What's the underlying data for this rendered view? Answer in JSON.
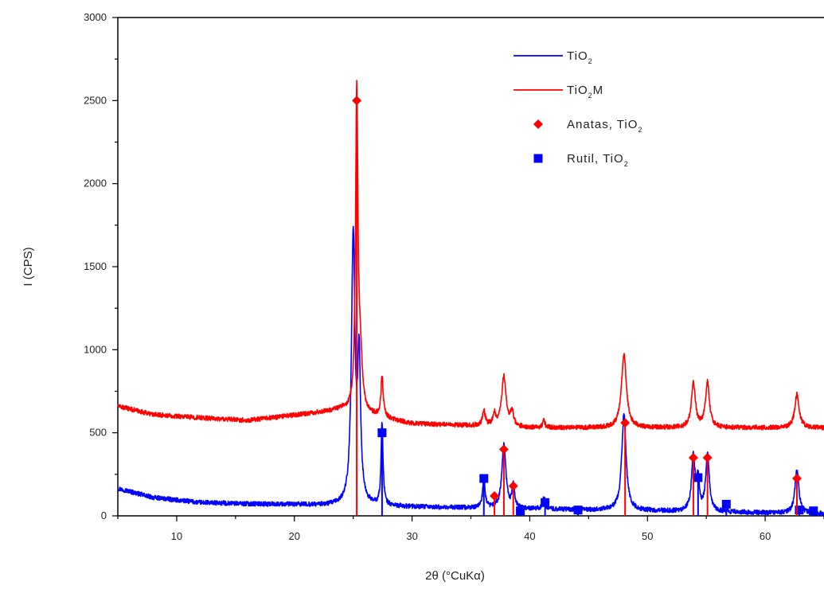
{
  "chart_data": {
    "type": "line",
    "title": "",
    "xlabel": "2θ (°CuKα)",
    "ylabel": "I (CPS)",
    "xlim": [
      5,
      65
    ],
    "ylim": [
      0,
      3000
    ],
    "x_ticks": [
      10,
      20,
      30,
      40,
      50,
      60
    ],
    "x_tick_labels": [
      "10",
      "20",
      "30",
      "40",
      "50",
      "60"
    ],
    "y_ticks": [
      0,
      500,
      1000,
      1500,
      2000,
      2500,
      3000
    ],
    "y_tick_labels": [
      "0",
      "500",
      "1000",
      "1500",
      "2000",
      "2500",
      "3000"
    ],
    "grid": false,
    "legend_position": "top-right",
    "colors": {
      "tio2": "#0000ff",
      "tio2m": "#ff0000",
      "anatas": "#ff0000",
      "rutil": "#0000ff"
    },
    "series": [
      {
        "name_parts": [
          "TiO",
          "2",
          ""
        ],
        "color": "#0000ff",
        "background": [
          [
            5,
            165
          ],
          [
            8,
            110
          ],
          [
            12,
            80
          ],
          [
            16,
            72
          ],
          [
            20,
            68
          ],
          [
            23,
            62
          ],
          [
            65,
            12
          ]
        ],
        "peaks": [
          {
            "x": 25.0,
            "y": 1600,
            "w": 0.18
          },
          {
            "x": 25.5,
            "y": 850,
            "w": 0.15
          },
          {
            "x": 27.45,
            "y": 500,
            "w": 0.1
          },
          {
            "x": 36.1,
            "y": 180,
            "w": 0.12
          },
          {
            "x": 37.8,
            "y": 390,
            "w": 0.2
          },
          {
            "x": 38.6,
            "y": 140,
            "w": 0.12
          },
          {
            "x": 41.2,
            "y": 70,
            "w": 0.12
          },
          {
            "x": 48.0,
            "y": 580,
            "w": 0.22
          },
          {
            "x": 53.9,
            "y": 330,
            "w": 0.18
          },
          {
            "x": 55.1,
            "y": 350,
            "w": 0.18
          },
          {
            "x": 54.3,
            "y": 180,
            "w": 0.12
          },
          {
            "x": 62.7,
            "y": 260,
            "w": 0.2
          }
        ],
        "noise": 14
      },
      {
        "name_parts": [
          "TiO",
          "2",
          "M"
        ],
        "color": "#ff0000",
        "background": [
          [
            5,
            660
          ],
          [
            8,
            610
          ],
          [
            12,
            590
          ],
          [
            16,
            575
          ],
          [
            20,
            605
          ],
          [
            24,
            640
          ],
          [
            30,
            555
          ],
          [
            40,
            530
          ],
          [
            50,
            530
          ],
          [
            65,
            530
          ]
        ],
        "peaks": [
          {
            "x": 25.3,
            "y": 1900,
            "w": 0.12
          },
          {
            "x": 25.6,
            "y": 300,
            "w": 0.2
          },
          {
            "x": 27.45,
            "y": 240,
            "w": 0.12
          },
          {
            "x": 36.1,
            "y": 90,
            "w": 0.15
          },
          {
            "x": 37.0,
            "y": 70,
            "w": 0.15
          },
          {
            "x": 37.8,
            "y": 300,
            "w": 0.22
          },
          {
            "x": 38.5,
            "y": 90,
            "w": 0.15
          },
          {
            "x": 41.2,
            "y": 40,
            "w": 0.12
          },
          {
            "x": 48.0,
            "y": 440,
            "w": 0.25
          },
          {
            "x": 53.9,
            "y": 270,
            "w": 0.2
          },
          {
            "x": 55.1,
            "y": 270,
            "w": 0.2
          },
          {
            "x": 62.7,
            "y": 200,
            "w": 0.22
          }
        ],
        "noise": 14
      }
    ],
    "reference_lines": {
      "anatas": {
        "name_parts": [
          "Anatas, TiO",
          "2"
        ],
        "marker": "diamond",
        "color": "#ff0000",
        "points": [
          [
            25.3,
            2500
          ],
          [
            37.0,
            120
          ],
          [
            37.8,
            400
          ],
          [
            38.6,
            180
          ],
          [
            48.1,
            560
          ],
          [
            53.9,
            350
          ],
          [
            55.1,
            350
          ],
          [
            62.7,
            225
          ]
        ]
      },
      "rutil": {
        "name_parts": [
          "Rutil, TiO",
          "2"
        ],
        "marker": "square",
        "color": "#0000ff",
        "points": [
          [
            27.45,
            500
          ],
          [
            36.1,
            225
          ],
          [
            39.2,
            30
          ],
          [
            41.3,
            80
          ],
          [
            44.1,
            35
          ],
          [
            54.3,
            230
          ],
          [
            56.7,
            70
          ],
          [
            62.9,
            35
          ],
          [
            64.1,
            30
          ]
        ]
      }
    }
  }
}
